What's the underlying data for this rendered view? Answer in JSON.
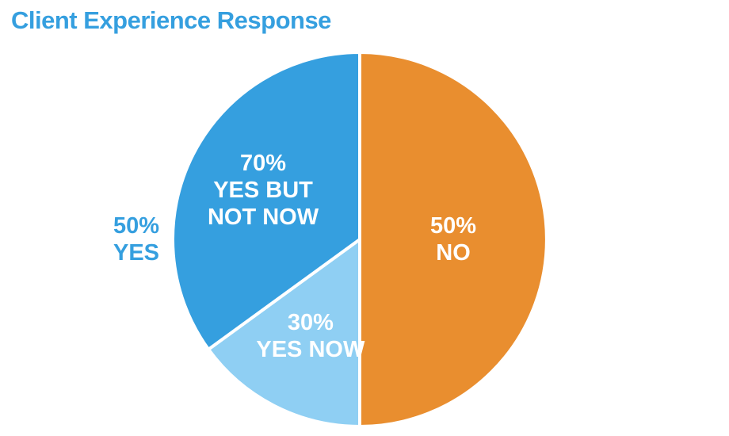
{
  "chart_data": {
    "type": "pie",
    "title": "Client Experience Response",
    "slices": [
      {
        "label": "NO",
        "value": 50,
        "value_label": "50%",
        "color": "#e98e2f"
      },
      {
        "label": "YES",
        "value": 50,
        "value_label": "50%",
        "color": "#359fdf",
        "parts": [
          {
            "label": "YES NOW",
            "value": 30,
            "value_label": "30%",
            "color": "#8fcff3"
          },
          {
            "label": "YES BUT NOT NOW",
            "value": 70,
            "value_label": "70%",
            "color": "#359fdf"
          }
        ]
      }
    ]
  }
}
